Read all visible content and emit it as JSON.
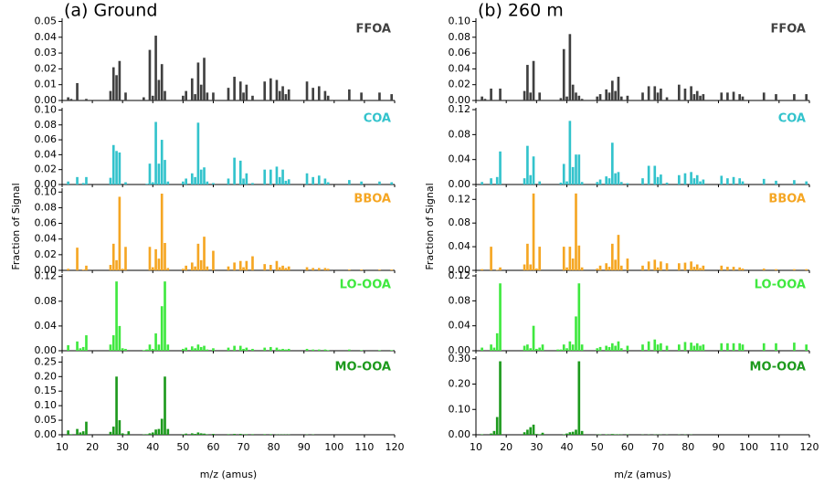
{
  "chart_data": [
    {
      "type": "bar",
      "title": "(a) Ground",
      "xlabel": "m/z (amus)",
      "ylabel": "Fraction of Signal",
      "x": [
        12,
        13,
        15,
        16,
        17,
        18,
        24,
        26,
        27,
        28,
        29,
        30,
        31,
        32,
        37,
        38,
        39,
        40,
        41,
        42,
        43,
        44,
        45,
        50,
        51,
        53,
        54,
        55,
        56,
        57,
        58,
        60,
        65,
        67,
        69,
        70,
        71,
        73,
        77,
        79,
        81,
        82,
        83,
        84,
        85,
        91,
        93,
        95,
        97,
        98,
        105,
        109,
        115,
        119
      ],
      "xlim": [
        10,
        120
      ],
      "xticks": [
        10,
        20,
        30,
        40,
        50,
        60,
        70,
        80,
        90,
        100,
        110,
        120
      ],
      "series": [
        {
          "name": "FFOA",
          "color": "#404040",
          "ylim": [
            0,
            0.052
          ],
          "yticks": [
            {
              "value": 0,
              "label": "0.00"
            },
            {
              "value": 0.01,
              "label": "0.01"
            },
            {
              "value": 0.02,
              "label": "0.02"
            },
            {
              "value": 0.03,
              "label": "0.03"
            },
            {
              "value": 0.04,
              "label": "0.04"
            },
            {
              "value": 0.05,
              "label": "0.05"
            }
          ],
          "values": [
            0.002,
            0.001,
            0.011,
            0,
            0,
            0.001,
            0,
            0.006,
            0.021,
            0.016,
            0.025,
            0,
            0.005,
            0,
            0.002,
            0,
            0.032,
            0.003,
            0.041,
            0.013,
            0.023,
            0.006,
            0,
            0.003,
            0.006,
            0.014,
            0.004,
            0.024,
            0.01,
            0.027,
            0.005,
            0.005,
            0.008,
            0.015,
            0.012,
            0.005,
            0.01,
            0.003,
            0.012,
            0.014,
            0.013,
            0.006,
            0.009,
            0.004,
            0.007,
            0.012,
            0.008,
            0.009,
            0.006,
            0.003,
            0.007,
            0.005,
            0.005,
            0.004
          ]
        },
        {
          "name": "COA",
          "color": "#33c3cc",
          "ylim": [
            0,
            0.103
          ],
          "yticks": [
            {
              "value": 0,
              "label": "0.00"
            },
            {
              "value": 0.02,
              "label": "0.02"
            },
            {
              "value": 0.04,
              "label": "0.04"
            },
            {
              "value": 0.06,
              "label": "0.06"
            },
            {
              "value": 0.08,
              "label": "0.08"
            },
            {
              "value": 0.1,
              "label": "0.10"
            }
          ],
          "values": [
            0.004,
            0,
            0.01,
            0,
            0.002,
            0.01,
            0,
            0.009,
            0.053,
            0.045,
            0.043,
            0,
            0.003,
            0,
            0,
            0.001,
            0.028,
            0.003,
            0.084,
            0.028,
            0.06,
            0.033,
            0.004,
            0.004,
            0.008,
            0.015,
            0.01,
            0.083,
            0.02,
            0.023,
            0.004,
            0.002,
            0.008,
            0.036,
            0.032,
            0.008,
            0.015,
            0.002,
            0.02,
            0.02,
            0.024,
            0.01,
            0.02,
            0.005,
            0.007,
            0.015,
            0.01,
            0.012,
            0.008,
            0.003,
            0.006,
            0.004,
            0.004,
            0.003
          ]
        },
        {
          "name": "BBOA",
          "color": "#f5a623",
          "ylim": [
            0,
            0.105
          ],
          "yticks": [
            {
              "value": 0,
              "label": "0.00"
            },
            {
              "value": 0.02,
              "label": "0.02"
            },
            {
              "value": 0.04,
              "label": "0.04"
            },
            {
              "value": 0.06,
              "label": "0.06"
            },
            {
              "value": 0.08,
              "label": "0.08"
            },
            {
              "value": 0.1,
              "label": "0.10"
            }
          ],
          "values": [
            0.002,
            0,
            0.029,
            0,
            0.001,
            0.006,
            0,
            0.007,
            0.034,
            0.013,
            0.094,
            0.002,
            0.03,
            0,
            0,
            0,
            0.03,
            0.004,
            0.027,
            0.015,
            0.098,
            0.035,
            0.003,
            0.002,
            0.006,
            0.01,
            0.005,
            0.034,
            0.013,
            0.043,
            0.005,
            0.025,
            0.005,
            0.01,
            0.012,
            0.004,
            0.012,
            0.018,
            0.008,
            0.007,
            0.012,
            0.004,
            0.006,
            0.003,
            0.005,
            0.004,
            0.003,
            0.003,
            0.003,
            0.002,
            0.001,
            0.001,
            0.001,
            0.001
          ]
        },
        {
          "name": "LO-OOA",
          "color": "#3fe83f",
          "ylim": [
            0,
            0.124
          ],
          "yticks": [
            {
              "value": 0,
              "label": "0.00"
            },
            {
              "value": 0.04,
              "label": "0.04"
            },
            {
              "value": 0.08,
              "label": "0.08"
            },
            {
              "value": 0.12,
              "label": "0.12"
            }
          ],
          "values": [
            0.009,
            0,
            0.015,
            0.004,
            0.006,
            0.025,
            0,
            0.01,
            0.025,
            0.112,
            0.04,
            0.004,
            0.003,
            0,
            0.001,
            0.002,
            0.01,
            0.003,
            0.028,
            0.01,
            0.072,
            0.112,
            0.01,
            0.003,
            0.005,
            0.007,
            0.004,
            0.01,
            0.006,
            0.008,
            0.002,
            0.004,
            0.005,
            0.008,
            0.008,
            0.003,
            0.005,
            0.003,
            0.005,
            0.006,
            0.005,
            0.002,
            0.003,
            0.002,
            0.003,
            0.003,
            0.002,
            0.002,
            0.002,
            0.001,
            0.002,
            0.001,
            0.001,
            0.001
          ]
        },
        {
          "name": "MO-OOA",
          "color": "#1d9a1d",
          "ylim": [
            0,
            0.27
          ],
          "yticks": [
            {
              "value": 0,
              "label": "0.00"
            },
            {
              "value": 0.05,
              "label": "0.05"
            },
            {
              "value": 0.1,
              "label": "0.10"
            },
            {
              "value": 0.15,
              "label": "0.15"
            },
            {
              "value": 0.2,
              "label": "0.20"
            },
            {
              "value": 0.25,
              "label": "0.25"
            }
          ],
          "values": [
            0.015,
            0.002,
            0.02,
            0.008,
            0.012,
            0.045,
            0,
            0.01,
            0.028,
            0.2,
            0.05,
            0.005,
            0.002,
            0.012,
            0.001,
            0.002,
            0.005,
            0.008,
            0.018,
            0.02,
            0.055,
            0.2,
            0.02,
            0.002,
            0.004,
            0.005,
            0.003,
            0.008,
            0.005,
            0.004,
            0.002,
            0.003,
            0.002,
            0.003,
            0.003,
            0.001,
            0.002,
            0.002,
            0.002,
            0.002,
            0.001,
            0.001,
            0.001,
            0.001,
            0.001,
            0.001,
            0.001,
            0,
            0,
            0,
            0,
            0,
            0,
            0
          ]
        }
      ]
    },
    {
      "type": "bar",
      "title": "(b) 260 m",
      "xlabel": "m/z (amus)",
      "ylabel": "Fraction of Signal",
      "x": [
        12,
        13,
        15,
        16,
        17,
        18,
        24,
        26,
        27,
        28,
        29,
        30,
        31,
        32,
        37,
        38,
        39,
        40,
        41,
        42,
        43,
        44,
        45,
        50,
        51,
        53,
        54,
        55,
        56,
        57,
        58,
        60,
        65,
        67,
        69,
        70,
        71,
        73,
        77,
        79,
        81,
        82,
        83,
        84,
        85,
        91,
        93,
        95,
        97,
        98,
        105,
        109,
        115,
        119
      ],
      "xlim": [
        10,
        120
      ],
      "xticks": [
        10,
        20,
        30,
        40,
        50,
        60,
        70,
        80,
        90,
        100,
        110,
        120
      ],
      "series": [
        {
          "name": "FFOA",
          "color": "#404040",
          "ylim": [
            0,
            0.104
          ],
          "yticks": [
            {
              "value": 0,
              "label": "0.00"
            },
            {
              "value": 0.02,
              "label": "0.02"
            },
            {
              "value": 0.04,
              "label": "0.04"
            },
            {
              "value": 0.06,
              "label": "0.06"
            },
            {
              "value": 0.08,
              "label": "0.08"
            },
            {
              "value": 0.1,
              "label": "0.10"
            }
          ],
          "values": [
            0.005,
            0.002,
            0.015,
            0,
            0,
            0.015,
            0,
            0.012,
            0.045,
            0.01,
            0.05,
            0,
            0.01,
            0,
            0,
            0.003,
            0.065,
            0.005,
            0.084,
            0.02,
            0.01,
            0.006,
            0.002,
            0.005,
            0.008,
            0.014,
            0.01,
            0.025,
            0.012,
            0.03,
            0.005,
            0.006,
            0.01,
            0.018,
            0.018,
            0.01,
            0.015,
            0.004,
            0.02,
            0.015,
            0.018,
            0.008,
            0.012,
            0.006,
            0.008,
            0.01,
            0.01,
            0.011,
            0.008,
            0.005,
            0.01,
            0.008,
            0.008,
            0.008
          ]
        },
        {
          "name": "COA",
          "color": "#33c3cc",
          "ylim": [
            0,
            0.123
          ],
          "yticks": [
            {
              "value": 0,
              "label": "0.00"
            },
            {
              "value": 0.04,
              "label": "0.04"
            },
            {
              "value": 0.08,
              "label": "0.08"
            },
            {
              "value": 0.12,
              "label": "0.12"
            }
          ],
          "values": [
            0.004,
            0,
            0.01,
            0,
            0.012,
            0.053,
            0,
            0.01,
            0.062,
            0.015,
            0.045,
            0,
            0.005,
            0,
            0,
            0.003,
            0.033,
            0.005,
            0.102,
            0.028,
            0.048,
            0.048,
            0.004,
            0.004,
            0.008,
            0.013,
            0.01,
            0.067,
            0.018,
            0.02,
            0.004,
            0.002,
            0.01,
            0.03,
            0.03,
            0.012,
            0.016,
            0.003,
            0.015,
            0.018,
            0.02,
            0.01,
            0.015,
            0.005,
            0.008,
            0.014,
            0.01,
            0.012,
            0.01,
            0.005,
            0.009,
            0.006,
            0.007,
            0.005
          ]
        },
        {
          "name": "BBOA",
          "color": "#f5a623",
          "ylim": [
            0,
            0.139
          ],
          "yticks": [
            {
              "value": 0,
              "label": "0.00"
            },
            {
              "value": 0.04,
              "label": "0.04"
            },
            {
              "value": 0.08,
              "label": "0.08"
            },
            {
              "value": 0.12,
              "label": "0.12"
            }
          ],
          "values": [
            0.002,
            0,
            0.04,
            0,
            0.001,
            0.005,
            0,
            0.01,
            0.045,
            0.01,
            0.13,
            0.003,
            0.04,
            0,
            0,
            0,
            0.04,
            0.005,
            0.04,
            0.02,
            0.13,
            0.042,
            0.005,
            0.003,
            0.008,
            0.012,
            0.006,
            0.045,
            0.018,
            0.06,
            0.008,
            0.02,
            0.008,
            0.015,
            0.018,
            0.005,
            0.015,
            0.012,
            0.012,
            0.013,
            0.015,
            0.006,
            0.01,
            0.004,
            0.008,
            0.008,
            0.006,
            0.006,
            0.005,
            0.003,
            0.003,
            0.002,
            0.002,
            0.002
          ]
        },
        {
          "name": "LO-OOA",
          "color": "#3fe83f",
          "ylim": [
            0,
            0.123
          ],
          "yticks": [
            {
              "value": 0,
              "label": "0.00"
            },
            {
              "value": 0.04,
              "label": "0.04"
            },
            {
              "value": 0.08,
              "label": "0.08"
            },
            {
              "value": 0.12,
              "label": "0.12"
            }
          ],
          "values": [
            0.005,
            0,
            0.01,
            0.005,
            0.028,
            0.108,
            0,
            0.008,
            0.01,
            0.004,
            0.04,
            0.003,
            0.005,
            0.01,
            0.002,
            0.002,
            0.01,
            0.004,
            0.015,
            0.01,
            0.055,
            0.108,
            0.01,
            0.004,
            0.006,
            0.008,
            0.006,
            0.012,
            0.008,
            0.015,
            0.004,
            0.008,
            0.01,
            0.015,
            0.018,
            0.01,
            0.012,
            0.008,
            0.01,
            0.014,
            0.013,
            0.008,
            0.012,
            0.008,
            0.01,
            0.012,
            0.012,
            0.012,
            0.012,
            0.01,
            0.012,
            0.012,
            0.013,
            0.01
          ]
        },
        {
          "name": "MO-OOA",
          "color": "#1d9a1d",
          "ylim": [
            0,
            0.31
          ],
          "yticks": [
            {
              "value": 0,
              "label": "0.00"
            },
            {
              "value": 0.1,
              "label": "0.10"
            },
            {
              "value": 0.2,
              "label": "0.20"
            },
            {
              "value": 0.3,
              "label": "0.30"
            }
          ],
          "values": [
            0.002,
            0,
            0.005,
            0.015,
            0.07,
            0.29,
            0,
            0.01,
            0.02,
            0.03,
            0.04,
            0.003,
            0.002,
            0.008,
            0,
            0,
            0.002,
            0.005,
            0.01,
            0.012,
            0.02,
            0.29,
            0.015,
            0.001,
            0.002,
            0.002,
            0.001,
            0.003,
            0.002,
            0.002,
            0.001,
            0.002,
            0.001,
            0.001,
            0.001,
            0.001,
            0.001,
            0.001,
            0.001,
            0.001,
            0.001,
            0,
            0,
            0,
            0,
            0,
            0,
            0,
            0,
            0,
            0,
            0,
            0,
            0
          ]
        }
      ]
    }
  ]
}
